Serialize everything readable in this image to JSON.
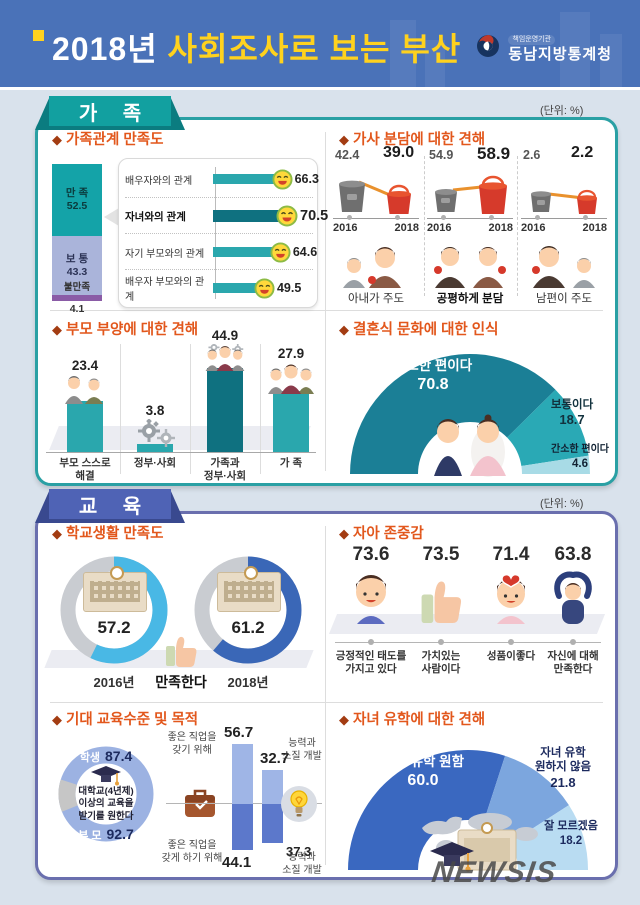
{
  "header": {
    "title_year": "2018년",
    "title_rest": "사회조사로 보는 부산",
    "agency_tag": "책임운영기관",
    "agency_name": "동남지방통계청"
  },
  "bullet": "◆",
  "unit_label": "(단위: %)",
  "sections": {
    "family": {
      "badge": "가 족"
    },
    "education": {
      "badge": "교 육"
    }
  },
  "watermark": "NEWSIS",
  "chart_data": [
    {
      "id": "family-relationship-satisfaction",
      "type": "bar",
      "title": "가족관계 만족도",
      "overall": {
        "type": "stacked-bar",
        "categories": [
          "만 족",
          "보 통",
          "불만족"
        ],
        "values": [
          "52.5",
          "43.3",
          "4.1"
        ]
      },
      "relations": {
        "categories": [
          "배우자와의 관계",
          "자녀와의 관계",
          "자기 부모와의 관계",
          "배우자 부모와의 관계"
        ],
        "values": [
          "66.3",
          "70.5",
          "64.6",
          "49.5"
        ],
        "highlight": "자녀와의 관계"
      }
    },
    {
      "id": "housework-sharing-views",
      "type": "bar",
      "title": "가사 분담에 대한 견해",
      "x": [
        "2016",
        "2018"
      ],
      "series": [
        {
          "name": "아내가 주도",
          "values": [
            "42.4",
            "39.0"
          ]
        },
        {
          "name": "공평하게 분담",
          "values": [
            "54.9",
            "58.9"
          ]
        },
        {
          "name": "남편이 주도",
          "values": [
            "2.6",
            "2.2"
          ]
        }
      ]
    },
    {
      "id": "parental-support-views",
      "type": "bar",
      "title": "부모 부양에 대한 견해",
      "categories": [
        [
          "부모 스스로",
          "해결"
        ],
        [
          "정부·사회"
        ],
        [
          "가족과",
          "정부·사회"
        ],
        [
          "가 족"
        ]
      ],
      "values": [
        "23.4",
        "3.8",
        "44.9",
        "27.9"
      ],
      "highlight": "가족과 정부·사회"
    },
    {
      "id": "wedding-culture-perception",
      "type": "pie",
      "title": "결혼식 문화에 대한 인식",
      "categories": [
        "과도한 편이다",
        "보통이다",
        "간소한 편이다"
      ],
      "values": [
        "70.8",
        "18.7",
        "4.6"
      ],
      "colors": [
        "#1b7f96",
        "#2aa9b5",
        "#a8dbe6"
      ]
    },
    {
      "id": "school-life-satisfaction",
      "type": "pie",
      "title": "학교생활 만족도",
      "categories": [
        "2016년",
        "2018년"
      ],
      "values": [
        "57.2",
        "61.2"
      ],
      "center_label": "만족한다",
      "colors": [
        "#49b8e5",
        "#3a67b7"
      ]
    },
    {
      "id": "self-esteem",
      "type": "bar",
      "title": "자아 존중감",
      "categories": [
        [
          "긍정적인 태도를",
          "가지고 있다"
        ],
        [
          "가치있는",
          "사람이다"
        ],
        [
          "성품이좋다"
        ],
        [
          "자신에 대해",
          "만족한다"
        ]
      ],
      "values": [
        "73.6",
        "73.5",
        "71.4",
        "63.8"
      ]
    },
    {
      "id": "expected-education-level-and-purpose",
      "type": "bar",
      "title": "기대 교육수준 및 목적",
      "level": {
        "center_text": [
          "대학교(4년제)",
          "이상의 교육을",
          "받기를 원한다"
        ],
        "series": [
          {
            "name": "학생",
            "value": "87.4"
          },
          {
            "name": "부 모",
            "value": "92.7"
          }
        ]
      },
      "purpose": {
        "labels": [
          [
            "좋은 직업을",
            "갖기 위해"
          ],
          [
            "좋은 직업을",
            "갖게 하기 위해"
          ],
          [
            "능력과",
            "소질 개발"
          ],
          [
            "능력과",
            "소질 개발"
          ]
        ],
        "student_values": [
          "56.7",
          "32.7"
        ],
        "parent_values": [
          "44.1",
          "37.3"
        ]
      }
    },
    {
      "id": "study-abroad-views",
      "type": "pie",
      "title": "자녀 유학에 대한 견해",
      "categories": [
        [
          "자녀 유학 원함"
        ],
        [
          "자녀 유학",
          "원하지 않음"
        ],
        [
          "잘 모르겠음"
        ]
      ],
      "values": [
        "60.0",
        "21.8",
        "18.2"
      ],
      "colors": [
        "#3a68c0",
        "#7ca6de",
        "#b9dcf2"
      ]
    }
  ]
}
